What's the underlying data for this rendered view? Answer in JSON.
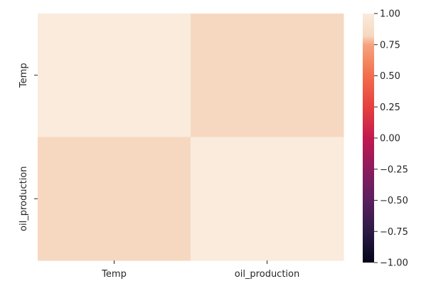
{
  "chart_data": {
    "type": "heatmap",
    "title": "",
    "xlabel": "",
    "ylabel": "",
    "x_categories": [
      "Temp",
      "oil_production"
    ],
    "y_categories": [
      "Temp",
      "oil_production"
    ],
    "values": [
      [
        1.0,
        0.82
      ],
      [
        0.82,
        1.0
      ]
    ],
    "colorbar": {
      "vmin": -1.0,
      "vmax": 1.0,
      "ticks": [
        1.0,
        0.75,
        0.5,
        0.25,
        0.0,
        -0.25,
        -0.5,
        -0.75,
        -1.0
      ],
      "tick_labels": [
        "1.00",
        "0.75",
        "0.50",
        "0.25",
        "0.00",
        "−0.25",
        "−0.50",
        "−0.75",
        "−1.00"
      ],
      "colormap": "rocket",
      "colormap_stops": [
        {
          "v": 0.0,
          "color": "#03051a"
        },
        {
          "v": 0.125,
          "color": "#2b1a45"
        },
        {
          "v": 0.25,
          "color": "#5a1f5e"
        },
        {
          "v": 0.375,
          "color": "#8b1c5f"
        },
        {
          "v": 0.5,
          "color": "#c21a4f"
        },
        {
          "v": 0.625,
          "color": "#e6403f"
        },
        {
          "v": 0.75,
          "color": "#f26e4c"
        },
        {
          "v": 0.875,
          "color": "#f6a37e"
        },
        {
          "v": 0.91,
          "color": "#f6d8c0"
        },
        {
          "v": 1.0,
          "color": "#faebdd"
        }
      ]
    },
    "grid": false,
    "legend": "colorbar-right"
  }
}
